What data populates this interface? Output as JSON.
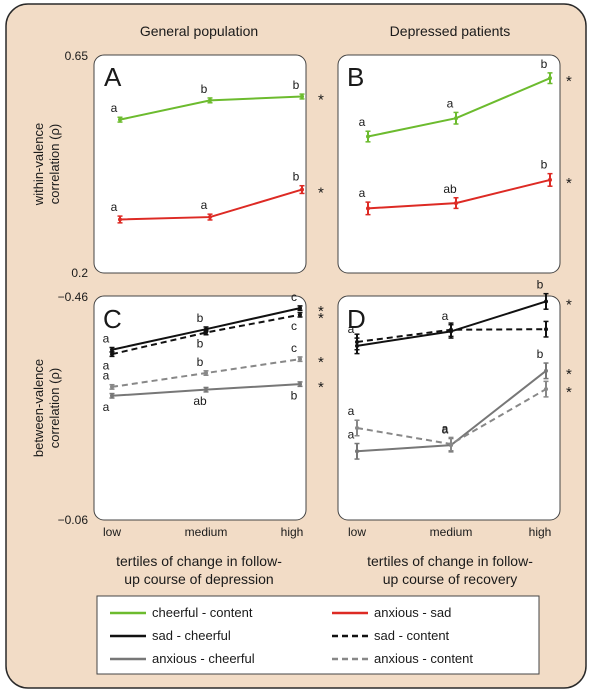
{
  "figure": {
    "background": "#f2dcc6",
    "border": "#2a2a2a",
    "col_titles": [
      "General population",
      "Depressed patients"
    ],
    "ylabel_top": [
      "within-valence",
      "correlation (ρ)"
    ],
    "ylabel_bottom": [
      "between-valence",
      "correlation (ρ)"
    ],
    "xlabel_left": [
      "tertiles of change in follow-",
      "up course of depression"
    ],
    "xlabel_right": [
      "tertiles of change in follow-",
      "up course of recovery"
    ],
    "x_ticks": [
      "low",
      "medium",
      "high"
    ],
    "y_ticks_top": [
      "0.65",
      "0.2"
    ],
    "y_ticks_bottom": [
      "−0.46",
      "−0.06"
    ]
  },
  "legend": [
    {
      "label": "cheerful - content",
      "color": "#6cbb2e",
      "dash": "solid"
    },
    {
      "label": "anxious - sad",
      "color": "#dd2a24",
      "dash": "solid"
    },
    {
      "label": "sad - cheerful",
      "color": "#111111",
      "dash": "solid"
    },
    {
      "label": "sad - content",
      "color": "#111111",
      "dash": "dashed"
    },
    {
      "label": "anxious - cheerful",
      "color": "#777777",
      "dash": "solid"
    },
    {
      "label": "anxious - content",
      "color": "#888888",
      "dash": "dashed"
    }
  ],
  "chart_data": [
    {
      "panel": "A",
      "type": "line",
      "x": [
        "low",
        "medium",
        "high"
      ],
      "ylim": [
        0.65,
        0.2
      ],
      "y_ticks": [
        "0.65",
        "0.2"
      ],
      "ylabel": "within-valence correlation (ρ)",
      "title": "General population",
      "series": [
        {
          "name": "cheerful - content",
          "color": "#6cbb2e",
          "dash": "solid",
          "y": [
            0.518,
            0.558,
            0.566
          ],
          "err": [
            0.005,
            0.005,
            0.005
          ],
          "labels": [
            "a",
            "b",
            "b"
          ],
          "label_pos": [
            "above",
            "above",
            "above"
          ],
          "sig": "*"
        },
        {
          "name": "anxious - sad",
          "color": "#dd2a24",
          "dash": "solid",
          "y": [
            0.311,
            0.316,
            0.373
          ],
          "err": [
            0.007,
            0.006,
            0.008
          ],
          "labels": [
            "a",
            "a",
            "b"
          ],
          "label_pos": [
            "above",
            "above",
            "above"
          ],
          "sig": "*"
        }
      ]
    },
    {
      "panel": "B",
      "type": "line",
      "x": [
        "low",
        "medium",
        "high"
      ],
      "ylim": [
        0.65,
        0.2
      ],
      "title": "Depressed patients",
      "series": [
        {
          "name": "cheerful - content",
          "color": "#6cbb2e",
          "dash": "solid",
          "y": [
            0.483,
            0.521,
            0.604
          ],
          "err": [
            0.011,
            0.012,
            0.011
          ],
          "labels": [
            "a",
            "a",
            "b"
          ],
          "label_pos": [
            "above",
            "above",
            "above"
          ],
          "sig": "*"
        },
        {
          "name": "anxious - sad",
          "color": "#dd2a24",
          "dash": "solid",
          "y": [
            0.334,
            0.345,
            0.393
          ],
          "err": [
            0.013,
            0.011,
            0.013
          ],
          "labels": [
            "a",
            "ab",
            "b"
          ],
          "label_pos": [
            "above",
            "above",
            "above"
          ],
          "sig": "*"
        }
      ]
    },
    {
      "panel": "C",
      "type": "line",
      "x": [
        "low",
        "medium",
        "high"
      ],
      "ylim": [
        -0.46,
        -0.06
      ],
      "y_ticks": [
        "−0.46",
        "−0.06"
      ],
      "ylabel": "between-valence correlation (ρ)",
      "xlabel": "tertiles of change in follow-up course of depression",
      "series": [
        {
          "name": "sad - cheerful",
          "color": "#111111",
          "dash": "solid",
          "y": [
            -0.365,
            -0.402,
            -0.44
          ],
          "err": [
            0.004,
            0.004,
            0.004
          ],
          "labels": [
            "a",
            "b",
            "c"
          ],
          "label_pos": [
            "above",
            "above",
            "above"
          ],
          "sig": "*"
        },
        {
          "name": "sad - content",
          "color": "#111111",
          "dash": "dashed",
          "y": [
            -0.357,
            -0.396,
            -0.428
          ],
          "err": [
            0.004,
            0.004,
            0.004
          ],
          "labels": [
            "a",
            "b",
            "c"
          ],
          "label_pos": [
            "below",
            "below",
            "below"
          ],
          "sig": "*"
        },
        {
          "name": "anxious - content",
          "color": "#888888",
          "dash": "dashed",
          "y": [
            -0.298,
            -0.323,
            -0.348
          ],
          "err": [
            0.004,
            0.004,
            0.004
          ],
          "labels": [
            "a",
            "b",
            "c"
          ],
          "label_pos": [
            "above",
            "above",
            "above"
          ],
          "sig": "*"
        },
        {
          "name": "anxious - cheerful",
          "color": "#777777",
          "dash": "solid",
          "y": [
            -0.282,
            -0.293,
            -0.303
          ],
          "err": [
            0.004,
            0.004,
            0.004
          ],
          "labels": [
            "a",
            "ab",
            "b"
          ],
          "label_pos": [
            "below",
            "below",
            "below"
          ],
          "sig": "*"
        }
      ]
    },
    {
      "panel": "D",
      "type": "line",
      "x": [
        "low",
        "medium",
        "high"
      ],
      "ylim": [
        -0.46,
        -0.06
      ],
      "xlabel": "tertiles of change in follow-up course of recovery",
      "series": [
        {
          "name": "sad - cheerful",
          "color": "#111111",
          "dash": "solid",
          "y": [
            -0.372,
            -0.398,
            -0.452
          ],
          "err": [
            0.014,
            0.012,
            0.014
          ],
          "labels": [
            "a",
            "a",
            "b"
          ],
          "label_pos": [
            "above",
            "above",
            "above"
          ],
          "sig": "*"
        },
        {
          "name": "sad - content",
          "color": "#111111",
          "dash": "dashed",
          "y": [
            -0.379,
            -0.401,
            -0.402
          ],
          "err": [
            0.014,
            0.012,
            0.014
          ],
          "labels": [],
          "label_pos": [],
          "sig": ""
        },
        {
          "name": "anxious - cheerful",
          "color": "#777777",
          "dash": "solid",
          "y": [
            -0.182,
            -0.193,
            -0.327
          ],
          "err": [
            0.014,
            0.012,
            0.014
          ],
          "labels": [
            "a",
            "a",
            "b"
          ],
          "label_pos": [
            "above",
            "above",
            "above"
          ],
          "sig": "*"
        },
        {
          "name": "anxious - content",
          "color": "#888888",
          "dash": "dashed",
          "y": [
            -0.224,
            -0.195,
            -0.294
          ],
          "err": [
            0.014,
            0.012,
            0.014
          ],
          "labels": [
            "a",
            "a",
            ""
          ],
          "label_pos": [
            "above",
            "above",
            "above"
          ],
          "sig": "*"
        }
      ]
    }
  ]
}
